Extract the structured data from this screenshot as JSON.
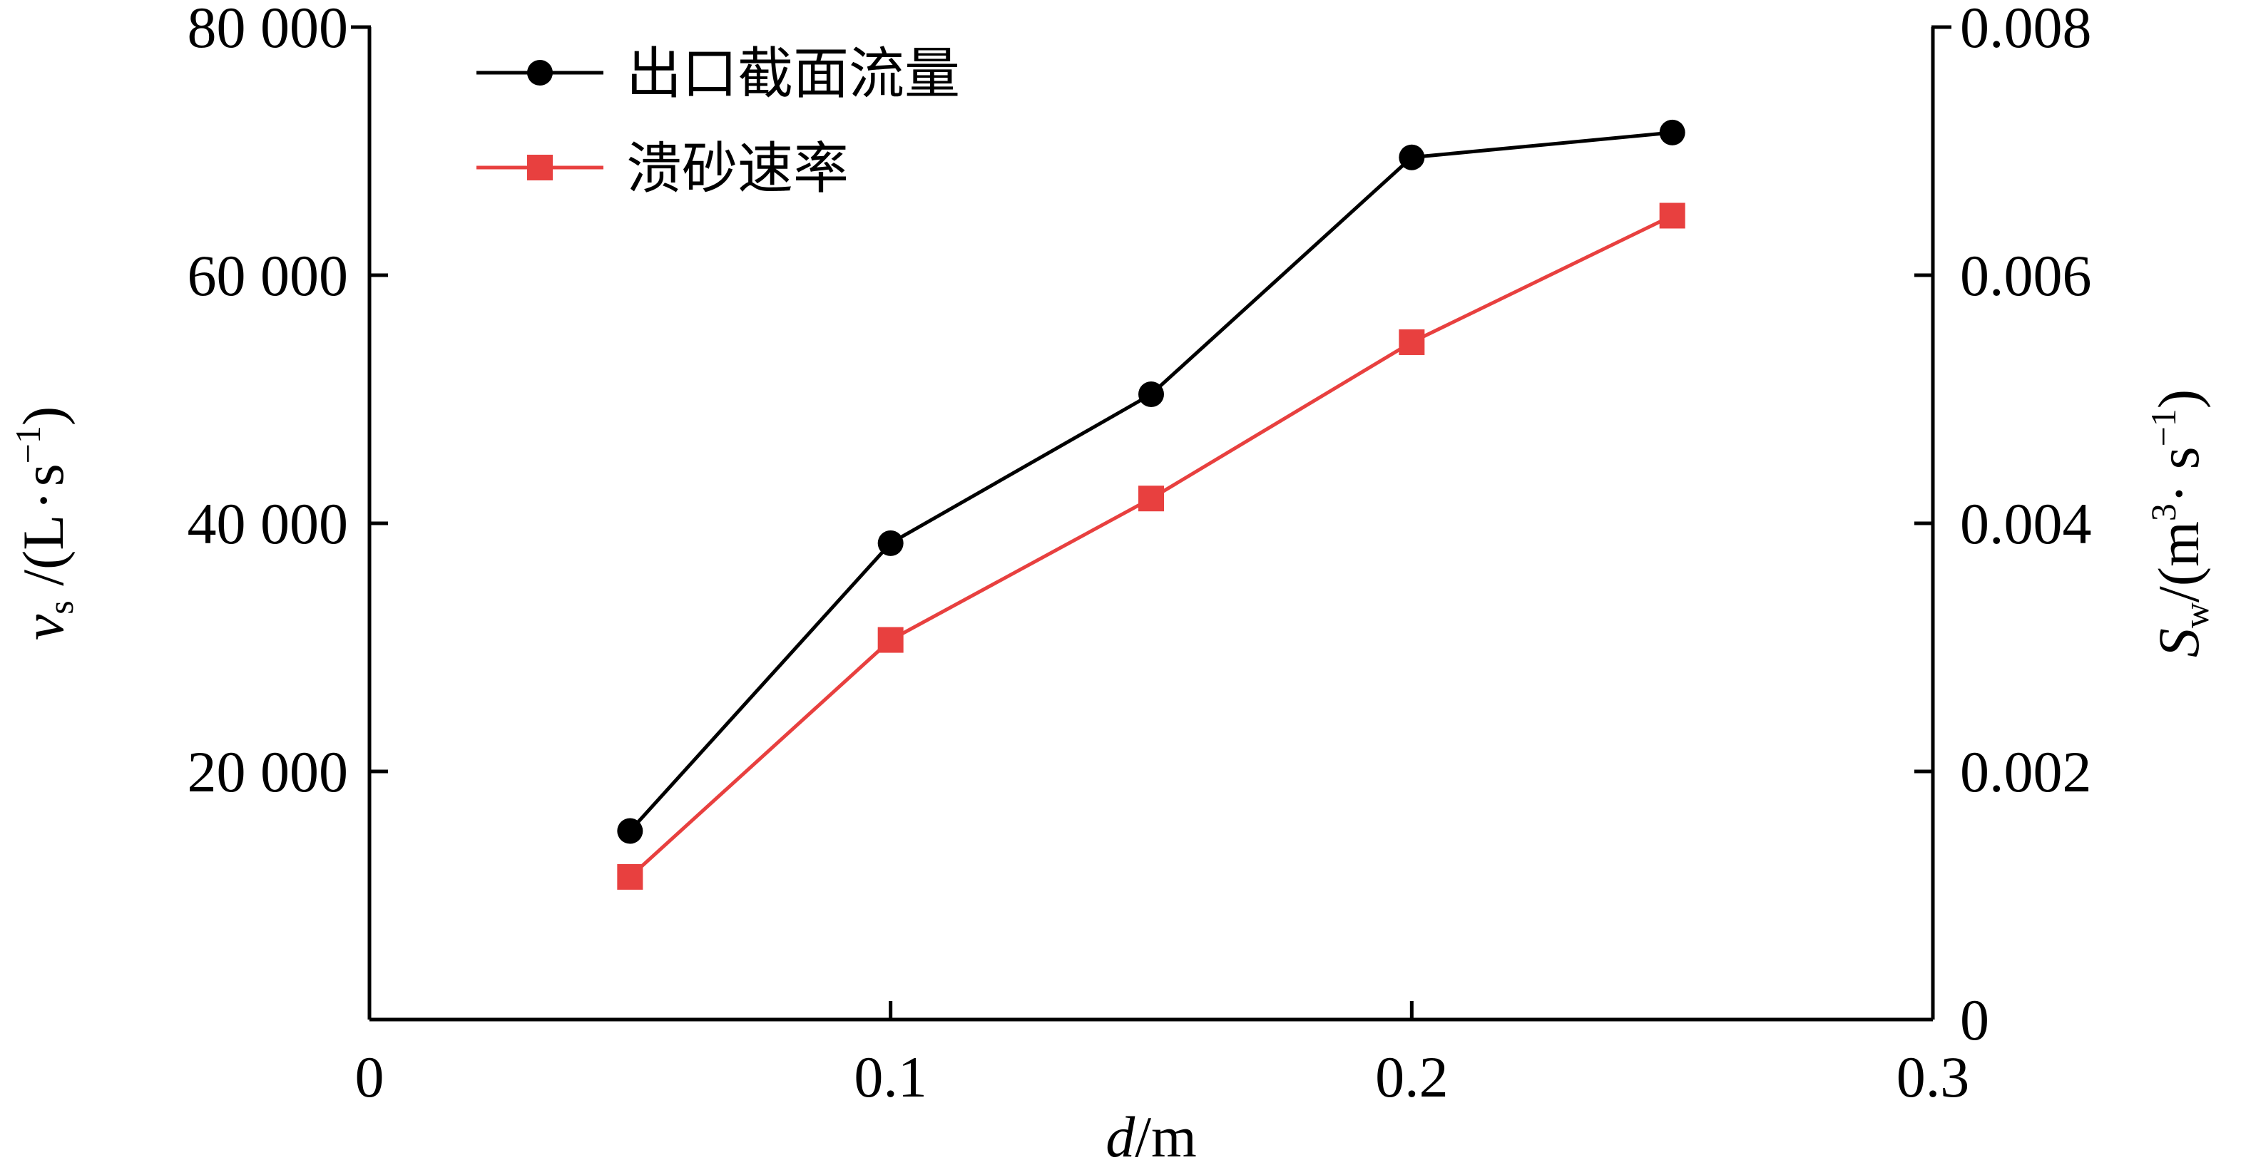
{
  "chart_data": {
    "type": "line",
    "title": "",
    "x": [
      0.05,
      0.1,
      0.15,
      0.2,
      0.25
    ],
    "xlim": [
      0,
      0.3
    ],
    "x_ticks": [
      "0",
      "0.1",
      "0.2",
      "0.3"
    ],
    "x_tick_values": [
      0,
      0.1,
      0.2,
      0.3
    ],
    "xlabel": {
      "italic": "d",
      "rest": "/m"
    },
    "y_left": {
      "lim": [
        0,
        80000
      ],
      "ticks": [
        "20 000",
        "40 000",
        "60 000",
        "80 000"
      ],
      "tick_values": [
        20000,
        40000,
        60000,
        80000
      ],
      "label": {
        "var": "v",
        "sub": "s",
        "unit_open": " /(L",
        "dot": "·",
        "unit_s": "s",
        "sup": "−1",
        "unit_close": ")"
      }
    },
    "y_right": {
      "lim": [
        0,
        0.008
      ],
      "ticks": [
        "0",
        "0.002",
        "0.004",
        "0.006",
        "0.008"
      ],
      "tick_values": [
        0,
        0.002,
        0.004,
        0.006,
        0.008
      ],
      "label": {
        "var": "S",
        "sub": "w",
        "unit_open": "/(m",
        "sup1": "3",
        "dot": "·",
        "unit_s": " s",
        "sup2": "−1",
        "unit_close": ")"
      }
    },
    "series": [
      {
        "name": "出口截面流量",
        "axis": "left",
        "color": "#000000",
        "marker": "circle",
        "values": [
          15200,
          38400,
          50400,
          69500,
          71500
        ]
      },
      {
        "name": "溃砂速率",
        "axis": "right",
        "color": "#e8403f",
        "marker": "square",
        "values": [
          0.00115,
          0.00306,
          0.0042,
          0.00546,
          0.00648
        ]
      }
    ],
    "legend_position": "top-left",
    "grid": false
  }
}
